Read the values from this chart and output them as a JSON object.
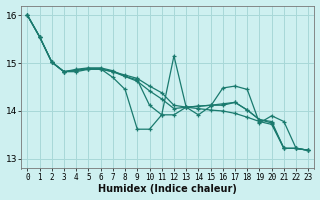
{
  "bg_color": "#cef0f0",
  "grid_color": "#a8d8d8",
  "line_color": "#1a7a6e",
  "xlabel": "Humidex (Indice chaleur)",
  "ylim": [
    12.8,
    16.2
  ],
  "xlim": [
    -0.5,
    23.5
  ],
  "yticks": [
    13,
    14,
    15,
    16
  ],
  "xticks": [
    0,
    1,
    2,
    3,
    4,
    5,
    6,
    7,
    8,
    9,
    10,
    11,
    12,
    13,
    14,
    15,
    16,
    17,
    18,
    19,
    20,
    21,
    22,
    23
  ],
  "series": [
    [
      16.0,
      15.55,
      15.02,
      14.82,
      14.82,
      14.87,
      14.87,
      14.82,
      14.75,
      14.68,
      14.52,
      14.38,
      14.12,
      14.08,
      14.05,
      14.02,
      14.0,
      13.95,
      13.87,
      13.78,
      13.72,
      13.22,
      13.22,
      13.18
    ],
    [
      16.0,
      15.55,
      15.02,
      14.82,
      14.87,
      14.9,
      14.9,
      14.84,
      14.72,
      14.62,
      14.42,
      14.25,
      14.05,
      14.08,
      14.1,
      14.12,
      14.15,
      14.18,
      14.02,
      13.82,
      13.75,
      13.22,
      13.22,
      13.18
    ],
    [
      16.0,
      15.55,
      15.02,
      14.82,
      14.85,
      14.88,
      14.88,
      14.7,
      14.45,
      13.62,
      13.62,
      13.92,
      15.15,
      14.08,
      13.92,
      14.1,
      14.48,
      14.52,
      14.45,
      13.75,
      13.9,
      13.78,
      13.22,
      13.18
    ],
    [
      16.0,
      15.55,
      15.02,
      14.82,
      14.85,
      14.88,
      14.88,
      14.82,
      14.72,
      14.65,
      14.12,
      13.92,
      13.92,
      14.08,
      14.1,
      14.12,
      14.12,
      14.18,
      14.02,
      13.82,
      13.78,
      13.22,
      13.22,
      13.18
    ]
  ]
}
